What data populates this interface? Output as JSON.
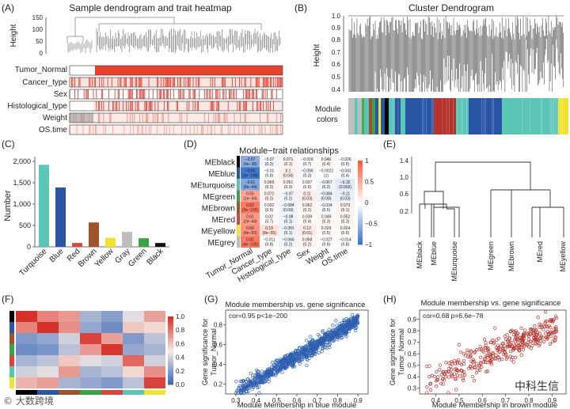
{
  "panelA": {
    "letter": "(A)",
    "title": "Sample dendrogram and trait heatmap",
    "ylabel": "Height",
    "yticks": [
      "150",
      "100",
      "50",
      "0"
    ],
    "traits": [
      "Tumor_Normal",
      "Cancer_type",
      "Sex",
      "Histological_type",
      "Weight",
      "OS.time"
    ]
  },
  "panelB": {
    "letter": "(B)",
    "title": "Cluster Dendrogram",
    "ylabel": "Height",
    "yticks": [
      "1.0",
      "0.9",
      "0.8",
      "0.7",
      "0.6",
      "0.5",
      "0.4"
    ],
    "module_label_1": "Module",
    "module_label_2": "colors"
  },
  "panelC": {
    "letter": "(C)",
    "ylabel": "Number",
    "chart_data": {
      "type": "bar",
      "categories": [
        "Turquoise",
        "Blue",
        "Red",
        "Brown",
        "Yellow",
        "Gray",
        "Green",
        "Black"
      ],
      "values": [
        1920,
        1390,
        90,
        570,
        210,
        350,
        200,
        90
      ],
      "colors": [
        "#5bc6b8",
        "#2955a6",
        "#d9443c",
        "#a0522d",
        "#f2e230",
        "#bdbdbd",
        "#3aa347",
        "#111111"
      ],
      "yticks": [
        "0",
        "500",
        "1,000",
        "1,500",
        "2,000"
      ],
      "ylim": [
        0,
        2000
      ]
    }
  },
  "panelD": {
    "letter": "(D)",
    "title": "Module−trait relationships",
    "modules": [
      "MEblack",
      "MEblue",
      "MEturquoise",
      "MEgreen",
      "MEbrown",
      "MEred",
      "MEyellow",
      "MEgrey"
    ],
    "module_colors": [
      "#000000",
      "#2955a6",
      "#5bc6b8",
      "#3aa347",
      "#a0522d",
      "#d9443c",
      "#f2e230",
      "#bdbdbd"
    ],
    "traits": [
      "Tumor_Normal",
      "Cancer_type",
      "Histological_type",
      "Sex",
      "Weight",
      "OS.time"
    ],
    "cells": [
      [
        [
          "−0.57",
          "(4e−38)"
        ],
        [
          "−0.07",
          "(0.2)"
        ],
        [
          "0.071",
          "(0.1)"
        ],
        [
          "−0.018",
          "(0.7)"
        ],
        [
          "0.046",
          "(0.4)"
        ],
        [
          "−0.026",
          "(0.6)"
        ]
      ],
      [
        [
          "−0.93",
          "(3e−198)"
        ],
        [
          "−0.01",
          "(0.8)"
        ],
        [
          "0.1",
          "(0.04)"
        ],
        [
          "−0.056",
          "(0.3)"
        ],
        [
          "−0.0022",
          "(1)"
        ],
        [
          "−0.041",
          "(0.4)"
        ]
      ],
      [
        [
          "−0.61",
          "(8e−44)"
        ],
        [
          "0.069",
          "(0.2)"
        ],
        [
          "0.051",
          "(0.3)"
        ],
        [
          "0.027",
          "(0.6)"
        ],
        [
          "−0.067",
          "(0.2)"
        ],
        [
          "−0.15",
          "(0.002)"
        ]
      ],
      [
        [
          "0.55",
          "(1e−34)"
        ],
        [
          "0.072",
          "(0.2)"
        ],
        [
          "−0.07",
          "(0.2)"
        ],
        [
          "0.11",
          "(0.03)"
        ],
        [
          "−0.084",
          "(0.08)"
        ],
        [
          "−0.11",
          "(0.03)"
        ]
      ],
      [
        [
          "0.82",
          "(3e−105)"
        ],
        [
          "0.032",
          "(0.5)"
        ],
        [
          "−0.084",
          "(0.09)"
        ],
        [
          "0.062",
          "(0.2)"
        ],
        [
          "−0.034",
          "(0.5)"
        ],
        [
          "0.073",
          "(0.1)"
        ]
      ],
      [
        [
          "0.61",
          "(2e−44)"
        ],
        [
          "0.02",
          "(0.7)"
        ],
        [
          "−0.08",
          "(0.1)"
        ],
        [
          "0.039",
          "(0.4)"
        ],
        [
          "0.049",
          "(0.3)"
        ],
        [
          "0.052",
          "(0.3)"
        ]
      ],
      [
        [
          "0.66",
          "(4e−53)"
        ],
        [
          "0.19",
          "(8e−05)"
        ],
        [
          "−0.081",
          "(0.1)"
        ],
        [
          "0.12",
          "(0.01)"
        ],
        [
          "0.029",
          "(0.5)"
        ],
        [
          "0.024",
          "(0.6)"
        ]
      ],
      [
        [
          "0.81",
          "(4e−100)"
        ],
        [
          "−0.011",
          "(0.8)"
        ],
        [
          "−0.066",
          "(0.2)"
        ],
        [
          "0.068",
          "(0.2)"
        ],
        [
          "−0.027",
          "(0.6)"
        ],
        [
          "−0.014",
          "(0.8)"
        ]
      ]
    ],
    "values": [
      [
        -0.57,
        -0.07,
        0.071,
        -0.018,
        0.046,
        -0.026
      ],
      [
        -0.93,
        -0.01,
        0.1,
        -0.056,
        -0.0022,
        -0.041
      ],
      [
        -0.61,
        0.069,
        0.051,
        0.027,
        -0.067,
        -0.15
      ],
      [
        0.55,
        0.072,
        -0.07,
        0.11,
        -0.084,
        -0.11
      ],
      [
        0.82,
        0.032,
        -0.084,
        0.062,
        -0.034,
        0.073
      ],
      [
        0.61,
        0.02,
        -0.08,
        0.039,
        0.049,
        0.052
      ],
      [
        0.66,
        0.19,
        -0.081,
        0.12,
        0.029,
        0.024
      ],
      [
        0.81,
        -0.011,
        -0.066,
        0.068,
        -0.027,
        -0.014
      ]
    ],
    "colorbar_ticks": [
      "1",
      "0.5",
      "0",
      "−0.5",
      "−1"
    ]
  },
  "panelE": {
    "letter": "(E)",
    "yticks": [
      "1.4",
      "1.0",
      "0.6",
      "0.2"
    ],
    "leaves": [
      "MEblack",
      "MEblue",
      "MEturquoise",
      "MEgreen",
      "MEbrown",
      "MEred",
      "MEyellow"
    ]
  },
  "panelF": {
    "letter": "(F)",
    "colorbar_ticks": [
      "1.0",
      "0.8",
      "0.6",
      "0.4",
      "0.2",
      "0.0"
    ],
    "module_colors": [
      "#000000",
      "#2955a6",
      "#a0522d",
      "#3aa347",
      "#d9443c",
      "#5bc6b8",
      "#f2e230"
    ],
    "matrix": [
      [
        1.0,
        0.78,
        0.72,
        0.3,
        0.22,
        0.45,
        0.7
      ],
      [
        0.78,
        1.0,
        0.75,
        0.25,
        0.15,
        0.6,
        0.55
      ],
      [
        0.2,
        0.25,
        0.4,
        0.95,
        0.7,
        0.2,
        0.35
      ],
      [
        0.15,
        0.18,
        0.35,
        0.72,
        0.98,
        0.25,
        0.3
      ],
      [
        0.3,
        0.35,
        0.6,
        0.45,
        0.4,
        0.85,
        0.4
      ],
      [
        0.4,
        0.45,
        0.72,
        0.3,
        0.35,
        0.55,
        0.75
      ],
      [
        0.65,
        0.7,
        0.3,
        0.25,
        0.2,
        0.35,
        0.95
      ]
    ]
  },
  "panelG": {
    "letter": "(G)",
    "title": "Module membership vs. gene significance",
    "stats": "cor=0.95  p<1e−200",
    "xlabel": "Module Membership in blue module",
    "ylabel_1": "Gene significance for",
    "ylabel_2": "Tumor_Normal",
    "xticks": [
      "0.3",
      "0.4",
      "0.5",
      "0.6",
      "0.7",
      "0.8",
      "0.9"
    ],
    "yticks": [
      "0.2",
      "0.4",
      "0.6",
      "0.8"
    ],
    "point_color": "#2d5fb0"
  },
  "panelH": {
    "letter": "(H)",
    "title": "Module membership vs. gene significance",
    "stats": "cor=0.68  p=6.6e−78",
    "xlabel": "Module Membership in brown module",
    "ylabel_1": "Gene significance for",
    "ylabel_2": "Tumor_Normal",
    "xticks": [
      "0.4",
      "0.5",
      "0.6",
      "0.7",
      "0.8",
      "0.9"
    ],
    "yticks": [
      "0.3",
      "0.4",
      "0.5",
      "0.6",
      "0.7",
      "0.8",
      "0.9"
    ],
    "point_color": "#b5332e"
  },
  "watermarks": {
    "left": "© 大数跨境",
    "right": "中科生信"
  }
}
